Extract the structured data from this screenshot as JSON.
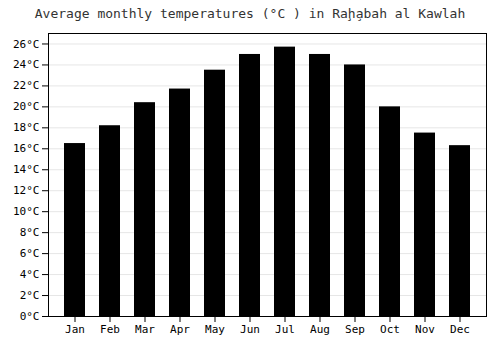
{
  "chart_data": {
    "type": "bar",
    "title": "Average monthly temperatures (°C ) in Raḩ̧abah al Kawlah",
    "categories": [
      "Jan",
      "Feb",
      "Mar",
      "Apr",
      "May",
      "Jun",
      "Jul",
      "Aug",
      "Sep",
      "Oct",
      "Nov",
      "Dec"
    ],
    "values": [
      16.5,
      18.2,
      20.4,
      21.7,
      23.5,
      25.0,
      25.7,
      25.0,
      24.0,
      20.0,
      17.5,
      16.3
    ],
    "ylim": [
      0,
      27
    ],
    "yticks": [
      {
        "value": 0,
        "label": "0°C"
      },
      {
        "value": 2,
        "label": "2°C"
      },
      {
        "value": 4,
        "label": "4°C"
      },
      {
        "value": 6,
        "label": "6°C"
      },
      {
        "value": 8,
        "label": "8°C"
      },
      {
        "value": 10,
        "label": "10°C"
      },
      {
        "value": 12,
        "label": "12°C"
      },
      {
        "value": 14,
        "label": "14°C"
      },
      {
        "value": 16,
        "label": "16°C"
      },
      {
        "value": 18,
        "label": "18°C"
      },
      {
        "value": 20,
        "label": "20°C"
      },
      {
        "value": 22,
        "label": "22°C"
      },
      {
        "value": 24,
        "label": "24°C"
      },
      {
        "value": 26,
        "label": "26°C"
      }
    ],
    "grid": true
  }
}
